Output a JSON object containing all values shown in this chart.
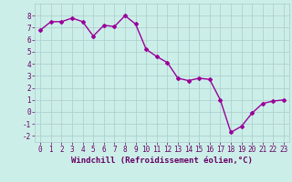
{
  "x": [
    0,
    1,
    2,
    3,
    4,
    5,
    6,
    7,
    8,
    9,
    10,
    11,
    12,
    13,
    14,
    15,
    16,
    17,
    18,
    19,
    20,
    21,
    22,
    23
  ],
  "y": [
    6.8,
    7.5,
    7.5,
    7.8,
    7.5,
    6.3,
    7.2,
    7.1,
    8.0,
    7.3,
    5.2,
    4.6,
    4.1,
    2.8,
    2.6,
    2.8,
    2.7,
    1.0,
    -1.7,
    -1.2,
    -0.1,
    0.7,
    0.9,
    1.0
  ],
  "line_color": "#990099",
  "marker": "D",
  "marker_size": 2.0,
  "bg_color": "#cceee8",
  "grid_color": "#aacccc",
  "xlabel": "Windchill (Refroidissement éolien,°C)",
  "xlabel_fontsize": 6.5,
  "ylim": [
    -2.5,
    9.0
  ],
  "xlim": [
    -0.5,
    23.5
  ],
  "yticks": [
    -2,
    -1,
    0,
    1,
    2,
    3,
    4,
    5,
    6,
    7,
    8
  ],
  "xticks": [
    0,
    1,
    2,
    3,
    4,
    5,
    6,
    7,
    8,
    9,
    10,
    11,
    12,
    13,
    14,
    15,
    16,
    17,
    18,
    19,
    20,
    21,
    22,
    23
  ],
  "tick_fontsize": 5.5,
  "line_width": 1.0
}
